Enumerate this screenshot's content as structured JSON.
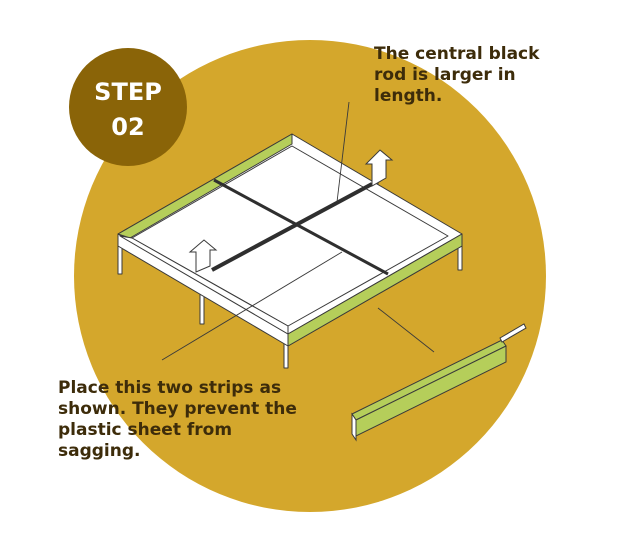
{
  "badge": {
    "line1": "STEP",
    "line2": "02"
  },
  "callouts": {
    "rod": [
      "The central black",
      "rod is larger in",
      "length."
    ],
    "strips": [
      "Place this two strips as",
      "shown. They prevent the",
      "plastic sheet from",
      "sagging."
    ]
  },
  "colors": {
    "background_circle": "#d4a72c",
    "badge": "#8a6408",
    "strip": "#b5ce5a",
    "frame": "#ffffff",
    "outline": "#3a3a3a",
    "rod": "#2f2f2f",
    "text": "#3d2c0a"
  }
}
